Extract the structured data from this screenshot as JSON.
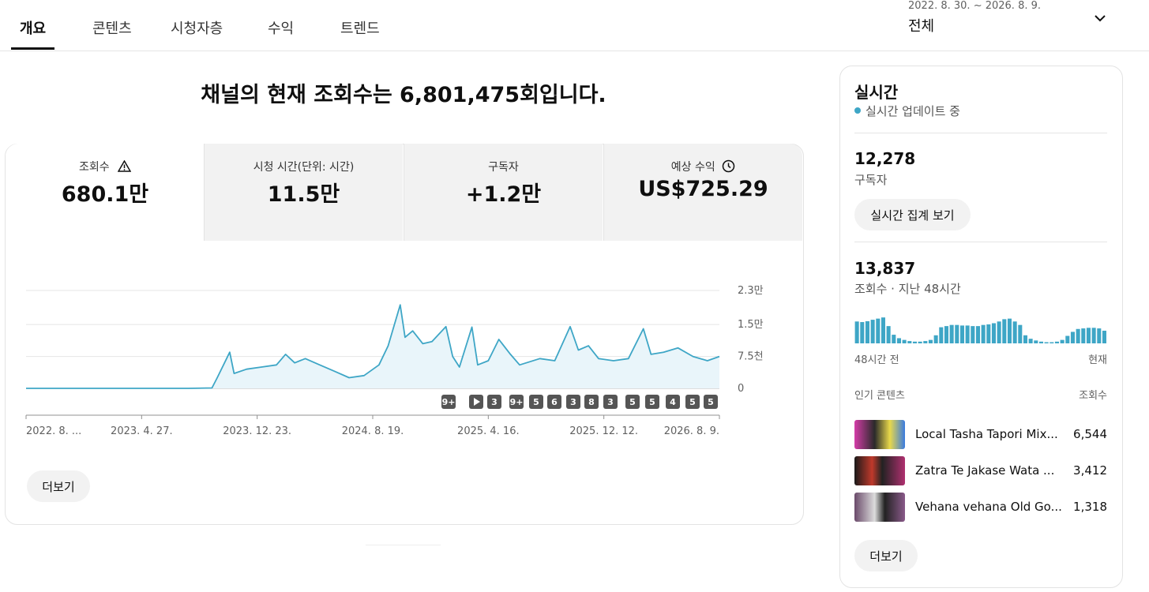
{
  "tabs": [
    "개요",
    "콘텐츠",
    "시청자층",
    "수익",
    "트렌드"
  ],
  "date_range": {
    "period": "2022. 8. 30. ~ 2026. 8. 9.",
    "label": "전체"
  },
  "headline": "채널의 현재 조회수는 6,801,475회입니다.",
  "metrics": [
    {
      "label": "조회수",
      "value": "680.1만"
    },
    {
      "label": "시청 시간(단위: 시간)",
      "value": "11.5만"
    },
    {
      "label": "구독자",
      "value": "+1.2만"
    },
    {
      "label": "예상 수익",
      "value": "US$725.29"
    }
  ],
  "chart_data": [
    {
      "type": "line",
      "x": [
        "2022-08-30",
        "2022-10-01",
        "2022-12-01",
        "2023-02-01",
        "2023-04-01",
        "2023-06-01",
        "2023-08-01",
        "2023-09-20",
        "2023-10-01",
        "2023-10-27",
        "2023-11-05",
        "2023-12-01",
        "2024-01-01",
        "2024-02-01",
        "2024-02-20",
        "2024-03-10",
        "2024-04-01",
        "2024-05-01",
        "2024-06-01",
        "2024-07-01",
        "2024-08-01",
        "2024-09-01",
        "2024-09-20",
        "2024-10-15",
        "2024-10-25",
        "2024-11-10",
        "2024-12-01",
        "2024-12-20",
        "2025-01-18",
        "2025-02-01",
        "2025-02-15",
        "2025-03-13",
        "2025-03-25",
        "2025-04-16",
        "2025-05-08",
        "2025-06-01",
        "2025-06-20",
        "2025-08-01",
        "2025-09-01",
        "2025-10-03",
        "2025-10-20",
        "2025-11-10",
        "2025-12-01",
        "2026-01-01",
        "2026-02-01",
        "2026-03-04",
        "2026-03-20",
        "2026-04-15",
        "2026-05-15",
        "2026-06-15",
        "2026-07-15",
        "2026-08-09"
      ],
      "values": [
        0,
        0,
        0,
        0,
        0,
        0,
        0,
        100,
        2500,
        8500,
        3500,
        4500,
        5000,
        5500,
        8000,
        6000,
        7000,
        5500,
        4000,
        2500,
        3000,
        5500,
        10000,
        19600,
        12000,
        13500,
        10500,
        11000,
        14500,
        7500,
        5000,
        14400,
        5500,
        6500,
        11500,
        8000,
        5500,
        7000,
        6500,
        14500,
        9000,
        10000,
        7000,
        6500,
        7000,
        14000,
        8000,
        8500,
        9500,
        7500,
        6500,
        7500
      ],
      "color": "#3ea6c6",
      "area_color": "#e9f5fa",
      "xlim": [
        "2022-08-30",
        "2026-08-09"
      ],
      "xticks": [
        {
          "value": "2022-08-30",
          "label": "2022. 8. ..."
        },
        {
          "value": "2023-04-27",
          "label": "2023. 4. 27."
        },
        {
          "value": "2023-12-23",
          "label": "2023. 12. 23."
        },
        {
          "value": "2024-08-19",
          "label": "2024. 8. 19."
        },
        {
          "value": "2025-04-16",
          "label": "2025. 4. 16."
        },
        {
          "value": "2025-12-12",
          "label": "2025. 12. 12."
        },
        {
          "value": "2026-08-09",
          "label": "2026. 8. 9."
        }
      ],
      "ylim": [
        0,
        23000
      ],
      "yticks": [
        0,
        {
          "value": 7500,
          "label": "7.5천"
        },
        {
          "value": 15000,
          "label": "1.5만"
        },
        {
          "value": 23000,
          "label": "2.3만"
        }
      ],
      "grid": true
    },
    {
      "type": "bar",
      "values": [
        380,
        370,
        385,
        410,
        430,
        450,
        300,
        150,
        90,
        60,
        40,
        30,
        30,
        40,
        60,
        140,
        280,
        300,
        320,
        320,
        310,
        310,
        300,
        300,
        320,
        330,
        350,
        380,
        420,
        430,
        380,
        320,
        140,
        80,
        50,
        30,
        20,
        20,
        30,
        60,
        130,
        200,
        250,
        260,
        270,
        270,
        260,
        220
      ],
      "color": "#3ea6c6",
      "ylim": [
        0,
        480
      ]
    }
  ],
  "badges": [
    "9+",
    "3",
    "9+",
    "5",
    "6",
    "3",
    "8",
    "3",
    "5",
    "5",
    "4",
    "5",
    "5"
  ],
  "more_button": "더보기",
  "realtime": {
    "title": "실시간",
    "status": "실시간 업데이트 중",
    "subscribers": "12,278",
    "subscribers_label": "구독자",
    "live_button": "실시간 집계 보기",
    "views": "13,837",
    "views_label": "조회수 · 지난 48시간",
    "start_label": "48시간 전",
    "end_label": "현재",
    "top_header": "인기 콘텐츠",
    "top_views_header": "조회수",
    "top_content": [
      {
        "title": "Local Tasha Tapori Mix...",
        "views": "6,544"
      },
      {
        "title": "Zatra Te Jakase Wata ...",
        "views": "3,412"
      },
      {
        "title": "Vehana vehana Old Go...",
        "views": "1,318"
      }
    ],
    "more_button": "더보기"
  }
}
